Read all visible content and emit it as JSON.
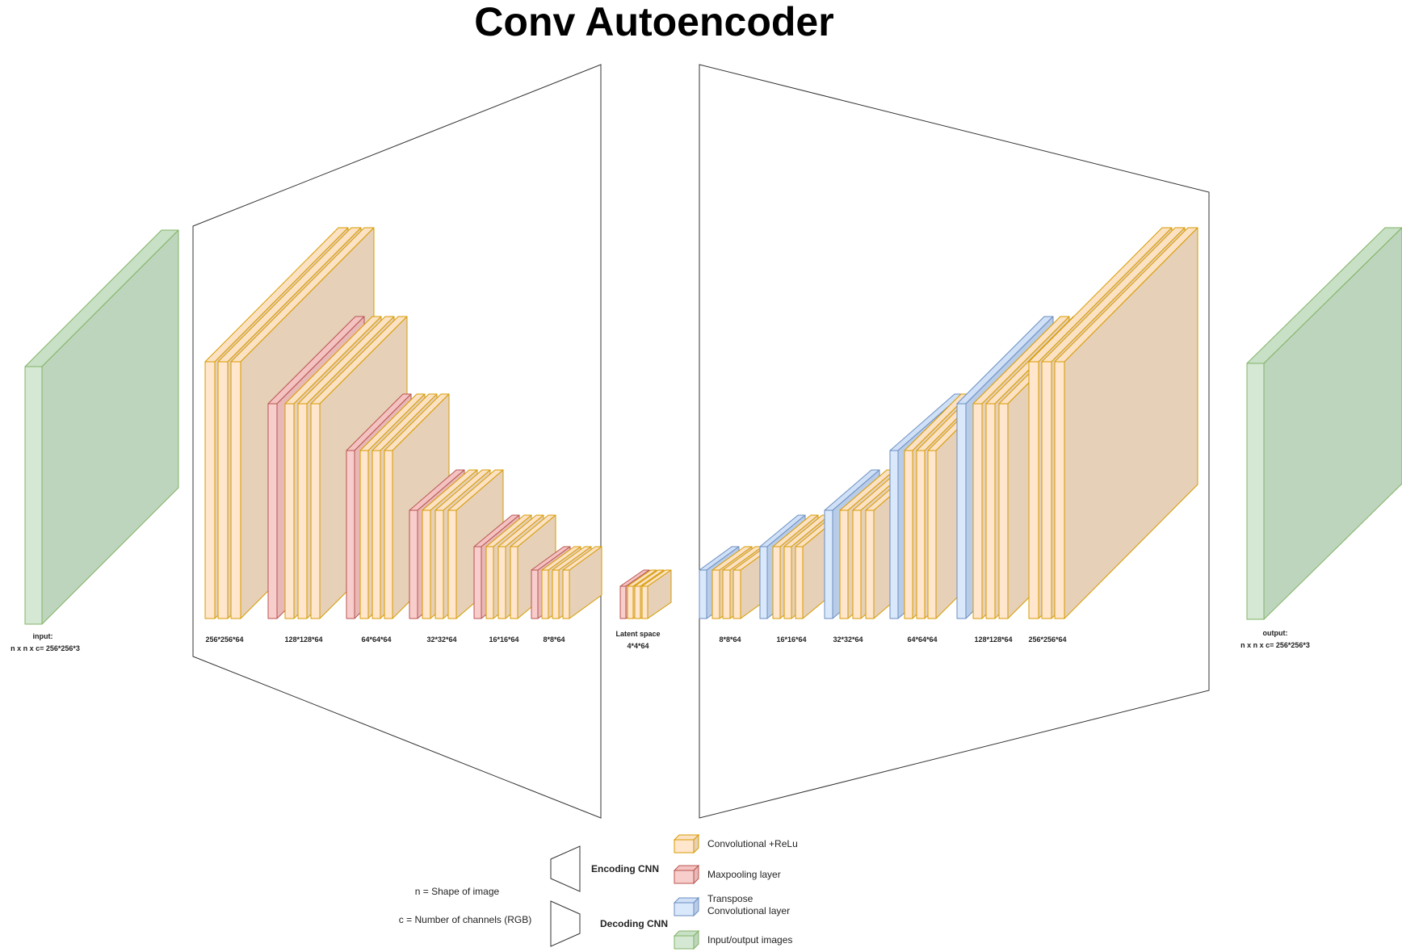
{
  "title": "Conv Autoencoder",
  "colors": {
    "conv": {
      "front": "#ffe6cc",
      "side": "#e6d0b8",
      "top": "#fce2c4",
      "stroke": "#d79b00"
    },
    "pool": {
      "front": "#f8cecc",
      "side": "#e8b8b6",
      "top": "#f4c3c1",
      "stroke": "#b85450"
    },
    "tconv": {
      "front": "#dae8fc",
      "side": "#b8cce8",
      "top": "#cfe0f7",
      "stroke": "#6c8ebf"
    },
    "io": {
      "front": "#d5e8d4",
      "side": "#bdd5bd",
      "top": "#c8e0c6",
      "stroke": "#82b366"
    }
  },
  "input_label": {
    "line1": "input:",
    "line2": "n x n x c= 256*256*3"
  },
  "output_label": {
    "line1": "output:",
    "line2": "n x n x c= 256*256*3"
  },
  "encoder_labels": [
    "256*256*64",
    "128*128*64",
    "64*64*64",
    "32*32*64",
    "16*16*64",
    "8*8*64"
  ],
  "latent_label": {
    "line1": "Latent space",
    "line2": "4*4*64"
  },
  "decoder_labels": [
    "8*8*64",
    "16*16*64",
    "32*32*64",
    "64*64*64",
    "128*128*64",
    "256*256*64"
  ],
  "notes": {
    "n": "n = Shape of image",
    "c": "c = Number of channels (RGB)"
  },
  "legend": {
    "encoding": "Encoding CNN",
    "decoding": "Decoding CNN",
    "conv": "Convolutional +ReLu",
    "pool": "Maxpooling layer",
    "tconv_line1": "Transpose",
    "tconv_line2": "Convolutional layer",
    "io": "Input/output images"
  }
}
